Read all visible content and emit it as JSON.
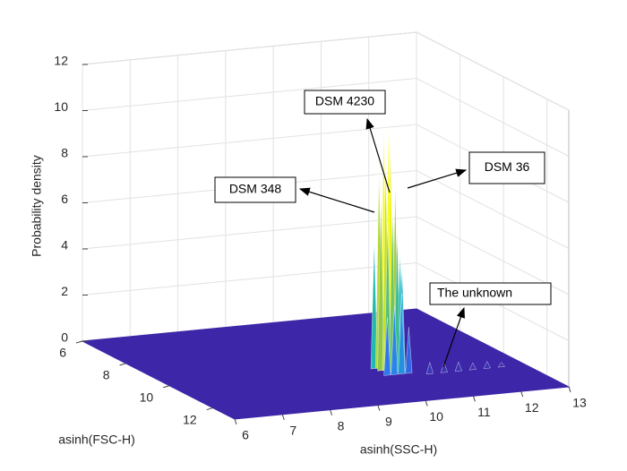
{
  "chart_data": {
    "type": "surface3d",
    "xlabel": "asinh(SSC-H)",
    "ylabel": "asinh(FSC-H)",
    "zlabel": "Probability density",
    "xlim": [
      6,
      13
    ],
    "xticks": [
      6,
      7,
      8,
      9,
      10,
      11,
      12,
      13
    ],
    "ylim": [
      6,
      13
    ],
    "yticks": [
      6,
      8,
      10,
      12
    ],
    "zlim": [
      0,
      12
    ],
    "zticks": [
      0,
      2,
      4,
      6,
      8,
      10,
      12
    ],
    "grid": true,
    "floor_color": "#3e26a8",
    "colormap": [
      "#3e26a8",
      "#2d7bf2",
      "#13b8bc",
      "#9fc93a",
      "#f9fb0e"
    ],
    "spikes": {
      "x": [
        10.2,
        10.3,
        10.4,
        10.5,
        10.6,
        10.25,
        10.35,
        10.45,
        10.55,
        10.65,
        10.3,
        10.4,
        10.5,
        10.6,
        10.2,
        10.35,
        10.5,
        10.65,
        11.0,
        11.3,
        11.6,
        11.9,
        12.2,
        12.5
      ],
      "y": [
        10.2,
        10.2,
        10.2,
        10.2,
        10.2,
        10.4,
        10.4,
        10.4,
        10.4,
        10.4,
        10.6,
        10.6,
        10.6,
        10.6,
        10.8,
        10.8,
        10.8,
        10.8,
        11.0,
        11.0,
        11.0,
        11.0,
        11.0,
        11.0
      ],
      "z": [
        5.5,
        8.5,
        10.5,
        10.5,
        6.0,
        7.5,
        9.0,
        10.0,
        8.0,
        5.0,
        6.5,
        7.0,
        6.0,
        4.5,
        2.5,
        3.0,
        3.5,
        2.0,
        0.5,
        0.4,
        0.4,
        0.3,
        0.3,
        0.2
      ]
    },
    "annotations": [
      "DSM 4230",
      "DSM 36",
      "DSM 348",
      "The unknown"
    ]
  }
}
